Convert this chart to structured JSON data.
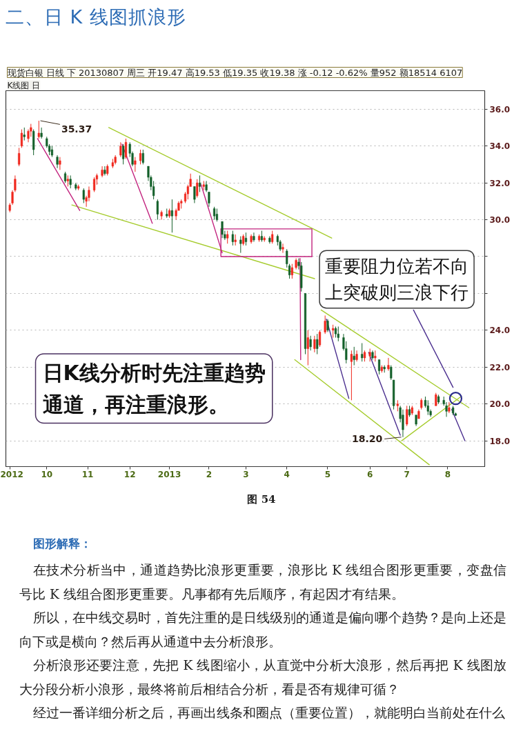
{
  "chart_data": {
    "type": "candlestick",
    "title": "二、日 K 线图抓浪形",
    "subtitle": "现货白银 日线 下 20130807 周三 开19.47 高19.53 低19.35 收19.38 涨 -0.12 -0.62% 量952 额18514 6107",
    "x": [
      "2012-09-03",
      "2012-09-05",
      "2012-09-07",
      "2012-09-10",
      "2012-09-12",
      "2012-09-14",
      "2012-09-17",
      "2012-09-19",
      "2012-09-21",
      "2012-09-25",
      "2012-09-27",
      "2012-10-01",
      "2012-10-03",
      "2012-10-05",
      "2012-10-09",
      "2012-10-11",
      "2012-10-15",
      "2012-10-17",
      "2012-10-19",
      "2012-10-23",
      "2012-10-25",
      "2012-10-29",
      "2012-10-31",
      "2012-11-02",
      "2012-11-06",
      "2012-11-08",
      "2012-11-12",
      "2012-11-14",
      "2012-11-16",
      "2012-11-20",
      "2012-11-22",
      "2012-11-26",
      "2012-11-28",
      "2012-11-30",
      "2012-12-03",
      "2012-12-05",
      "2012-12-07",
      "2012-12-11",
      "2012-12-13",
      "2012-12-17",
      "2012-12-19",
      "2012-12-21",
      "2012-12-24",
      "2012-12-27",
      "2012-12-31",
      "2013-01-02",
      "2013-01-04",
      "2013-01-07",
      "2013-01-09",
      "2013-01-11",
      "2013-01-14",
      "2013-01-16",
      "2013-01-18",
      "2013-01-21",
      "2013-01-23",
      "2013-01-25",
      "2013-01-28",
      "2013-01-30",
      "2013-02-01",
      "2013-02-05",
      "2013-02-07",
      "2013-02-11",
      "2013-02-13",
      "2013-02-15",
      "2013-02-19",
      "2013-02-21",
      "2013-02-25",
      "2013-02-27",
      "2013-03-01",
      "2013-03-05",
      "2013-03-07",
      "2013-03-11",
      "2013-03-13",
      "2013-03-15",
      "2013-03-19",
      "2013-03-21",
      "2013-03-25",
      "2013-03-27",
      "2013-03-29",
      "2013-04-01",
      "2013-04-03",
      "2013-04-05",
      "2013-04-08",
      "2013-04-10",
      "2013-04-12",
      "2013-04-15",
      "2013-04-17",
      "2013-04-19",
      "2013-04-22",
      "2013-04-24",
      "2013-04-26",
      "2013-04-30",
      "2013-05-02",
      "2013-05-06",
      "2013-05-08",
      "2013-05-10",
      "2013-05-14",
      "2013-05-16",
      "2013-05-20",
      "2013-05-22",
      "2013-05-24",
      "2013-05-28",
      "2013-05-30",
      "2013-06-03",
      "2013-06-05",
      "2013-06-07",
      "2013-06-10",
      "2013-06-12",
      "2013-06-14",
      "2013-06-17",
      "2013-06-19",
      "2013-06-21",
      "2013-06-24",
      "2013-06-26",
      "2013-06-28",
      "2013-07-01",
      "2013-07-03",
      "2013-07-05",
      "2013-07-08",
      "2013-07-10",
      "2013-07-12",
      "2013-07-15",
      "2013-07-17",
      "2013-07-19",
      "2013-07-23",
      "2013-07-25",
      "2013-07-29",
      "2013-07-31",
      "2013-08-02",
      "2013-08-05",
      "2013-08-07"
    ],
    "ohlc": [
      [
        30.5,
        30.9,
        30.4,
        30.8
      ],
      [
        30.9,
        31.6,
        30.8,
        31.5
      ],
      [
        31.6,
        32.4,
        31.5,
        32.2
      ],
      [
        33.0,
        33.9,
        32.9,
        33.6
      ],
      [
        34.0,
        34.9,
        33.9,
        34.7
      ],
      [
        34.6,
        35.0,
        34.3,
        34.5
      ],
      [
        34.4,
        34.9,
        34.2,
        34.8
      ],
      [
        34.8,
        35.2,
        34.5,
        35.0
      ],
      [
        34.8,
        34.9,
        33.5,
        33.8
      ],
      [
        34.5,
        35.37,
        34.4,
        34.7
      ],
      [
        34.7,
        35.0,
        34.4,
        34.5
      ],
      [
        34.4,
        34.5,
        33.9,
        34.0
      ],
      [
        34.0,
        34.1,
        33.5,
        33.7
      ],
      [
        33.8,
        34.0,
        33.4,
        33.5
      ],
      [
        33.4,
        33.5,
        32.8,
        33.0
      ],
      [
        33.0,
        33.4,
        32.7,
        33.2
      ],
      [
        32.5,
        32.6,
        32.0,
        32.1
      ],
      [
        32.1,
        32.4,
        31.8,
        32.2
      ],
      [
        32.2,
        32.4,
        31.7,
        31.9
      ],
      [
        31.9,
        32.0,
        31.6,
        31.7
      ],
      [
        31.7,
        31.9,
        31.6,
        31.8
      ],
      [
        31.6,
        31.7,
        30.9,
        31.1
      ],
      [
        31.0,
        31.3,
        30.7,
        31.2
      ],
      [
        31.2,
        31.8,
        31.0,
        31.6
      ],
      [
        31.6,
        32.3,
        31.5,
        32.2
      ],
      [
        32.2,
        32.5,
        31.9,
        32.4
      ],
      [
        32.4,
        32.9,
        32.3,
        32.7
      ],
      [
        32.7,
        32.9,
        32.4,
        32.5
      ],
      [
        32.5,
        33.0,
        32.4,
        32.9
      ],
      [
        32.9,
        33.3,
        32.8,
        33.1
      ],
      [
        33.1,
        33.5,
        33.0,
        33.4
      ],
      [
        33.5,
        34.2,
        33.4,
        34.0
      ],
      [
        34.0,
        34.1,
        33.0,
        33.3
      ],
      [
        33.4,
        34.4,
        33.3,
        34.2
      ],
      [
        34.1,
        34.2,
        33.4,
        33.6
      ],
      [
        33.6,
        33.7,
        32.9,
        33.0
      ],
      [
        33.0,
        33.4,
        32.6,
        33.2
      ],
      [
        33.2,
        33.8,
        33.0,
        33.6
      ],
      [
        33.6,
        33.8,
        33.0,
        33.1
      ],
      [
        32.9,
        32.9,
        32.1,
        32.3
      ],
      [
        32.3,
        32.4,
        31.6,
        31.8
      ],
      [
        31.8,
        32.1,
        31.1,
        31.3
      ],
      [
        31.0,
        31.1,
        30.0,
        30.3
      ],
      [
        30.2,
        30.5,
        30.0,
        30.4
      ],
      [
        30.3,
        30.6,
        30.1,
        30.2
      ],
      [
        30.2,
        30.6,
        30.1,
        30.5
      ],
      [
        30.5,
        31.1,
        29.3,
        30.2
      ],
      [
        30.2,
        30.6,
        30.0,
        30.5
      ],
      [
        30.5,
        31.0,
        30.5,
        30.9
      ],
      [
        30.9,
        31.1,
        30.6,
        31.0
      ],
      [
        31.0,
        31.5,
        30.9,
        31.4
      ],
      [
        31.4,
        31.9,
        31.1,
        31.8
      ],
      [
        31.8,
        32.5,
        31.8,
        32.2
      ],
      [
        31.8,
        31.8,
        30.9,
        31.1
      ],
      [
        31.3,
        32.2,
        31.2,
        32.0
      ],
      [
        32.0,
        32.4,
        31.5,
        31.8
      ],
      [
        31.8,
        32.1,
        31.6,
        31.9
      ],
      [
        31.9,
        32.1,
        31.5,
        31.6
      ],
      [
        31.5,
        31.5,
        30.7,
        30.9
      ],
      [
        30.6,
        30.7,
        30.0,
        30.2
      ],
      [
        30.3,
        30.6,
        29.9,
        30.0
      ],
      [
        29.9,
        29.9,
        29.0,
        29.2
      ],
      [
        29.2,
        29.4,
        28.9,
        29.0
      ],
      [
        29.0,
        29.4,
        28.7,
        29.2
      ],
      [
        29.2,
        29.4,
        28.6,
        28.8
      ],
      [
        28.8,
        29.2,
        28.6,
        28.9
      ],
      [
        28.9,
        29.1,
        28.2,
        28.7
      ],
      [
        28.7,
        29.2,
        28.6,
        29.1
      ],
      [
        29.0,
        29.3,
        28.6,
        28.8
      ],
      [
        28.8,
        29.2,
        28.7,
        29.1
      ],
      [
        29.1,
        29.3,
        28.8,
        28.9
      ],
      [
        28.9,
        29.2,
        28.8,
        29.1
      ],
      [
        29.1,
        29.4,
        28.8,
        28.9
      ],
      [
        28.9,
        29.1,
        28.8,
        29.0
      ],
      [
        29.0,
        29.1,
        28.7,
        28.8
      ],
      [
        28.8,
        29.4,
        28.7,
        29.2
      ],
      [
        29.1,
        29.2,
        28.6,
        28.8
      ],
      [
        28.8,
        28.9,
        28.3,
        28.4
      ],
      [
        28.4,
        28.7,
        28.2,
        28.5
      ],
      [
        28.3,
        28.4,
        27.4,
        27.6
      ],
      [
        27.5,
        27.6,
        26.8,
        27.0
      ],
      [
        27.0,
        27.6,
        26.8,
        27.4
      ],
      [
        27.4,
        27.9,
        27.3,
        27.8
      ],
      [
        27.7,
        27.9,
        27.3,
        27.5
      ],
      [
        27.5,
        27.7,
        26.1,
        26.3
      ],
      [
        26.0,
        26.0,
        22.7,
        23.0
      ],
      [
        23.0,
        24.0,
        22.1,
        23.6
      ],
      [
        23.5,
        23.7,
        22.9,
        23.1
      ],
      [
        23.0,
        23.7,
        22.8,
        23.5
      ],
      [
        23.5,
        23.8,
        22.7,
        23.0
      ],
      [
        23.2,
        24.0,
        23.1,
        23.9
      ],
      [
        23.9,
        24.8,
        23.8,
        24.5
      ],
      [
        24.5,
        24.6,
        23.9,
        24.0
      ],
      [
        24.0,
        24.3,
        23.6,
        24.1
      ],
      [
        24.1,
        24.2,
        23.6,
        23.8
      ],
      [
        23.8,
        24.2,
        23.4,
        23.6
      ],
      [
        23.6,
        23.8,
        22.9,
        23.0
      ],
      [
        23.0,
        23.4,
        22.2,
        22.4
      ],
      [
        22.3,
        22.9,
        20.2,
        22.7
      ],
      [
        22.6,
        23.1,
        22.1,
        22.4
      ],
      [
        22.4,
        22.9,
        22.3,
        22.7
      ],
      [
        22.7,
        23.3,
        22.3,
        22.5
      ],
      [
        22.5,
        22.9,
        22.3,
        22.8
      ],
      [
        22.6,
        23.0,
        22.3,
        22.8
      ],
      [
        22.8,
        22.9,
        22.4,
        22.5
      ],
      [
        22.5,
        22.9,
        22.3,
        22.6
      ],
      [
        22.4,
        22.4,
        21.6,
        21.8
      ],
      [
        21.8,
        22.1,
        21.7,
        22.0
      ],
      [
        22.0,
        22.1,
        21.7,
        21.9
      ],
      [
        21.9,
        22.5,
        21.8,
        22.1
      ],
      [
        22.0,
        22.1,
        21.3,
        21.4
      ],
      [
        21.3,
        21.3,
        19.7,
        19.9
      ],
      [
        19.9,
        20.2,
        19.6,
        20.0
      ],
      [
        19.8,
        19.9,
        19.0,
        19.2
      ],
      [
        19.4,
        19.7,
        18.2,
        18.6
      ],
      [
        18.9,
        19.9,
        18.8,
        19.7
      ],
      [
        19.7,
        19.9,
        19.3,
        19.4
      ],
      [
        19.5,
        19.9,
        19.4,
        19.8
      ],
      [
        19.4,
        19.4,
        18.8,
        18.9
      ],
      [
        19.2,
        19.7,
        19.2,
        19.6
      ],
      [
        19.8,
        20.3,
        19.7,
        20.2
      ],
      [
        20.2,
        20.4,
        19.8,
        19.9
      ],
      [
        19.9,
        20.2,
        19.4,
        19.6
      ],
      [
        19.6,
        19.7,
        19.3,
        19.4
      ],
      [
        19.9,
        20.6,
        19.9,
        20.5
      ],
      [
        20.4,
        20.5,
        20.0,
        20.1
      ],
      [
        20.2,
        20.4,
        19.9,
        20.0
      ],
      [
        19.9,
        20.1,
        19.3,
        19.6
      ],
      [
        19.6,
        20.1,
        19.5,
        19.8
      ],
      [
        19.8,
        19.9,
        19.4,
        19.5
      ],
      [
        19.47,
        19.53,
        19.35,
        19.38
      ]
    ],
    "series": [
      {
        "type": "line",
        "color": "#a6cc2e",
        "x": [
          "2012-11-17",
          "2013-05-05"
        ],
        "values": [
          35.0,
          29.0
        ]
      },
      {
        "type": "line",
        "color": "#a6cc2e",
        "x": [
          "2012-10-20",
          "2013-04-22"
        ],
        "values": [
          30.8,
          26.8
        ]
      },
      {
        "type": "line",
        "color": "#a6cc2e",
        "x": [
          "2013-04-27",
          "2013-08-17"
        ],
        "values": [
          25.1,
          19.8
        ]
      },
      {
        "type": "line",
        "color": "#a6cc2e",
        "x": [
          "2013-04-07",
          "2013-07-18"
        ],
        "values": [
          22.4,
          16.7
        ]
      },
      {
        "type": "line",
        "color": "#a6cc2e",
        "x": [
          "2013-06-27",
          "2013-08-11"
        ],
        "values": [
          18.0,
          20.4
        ]
      },
      {
        "type": "line",
        "color": "#c2237e",
        "x": [
          "2012-09-24",
          "2012-10-26"
        ],
        "values": [
          34.4,
          30.5
        ]
      },
      {
        "type": "line",
        "color": "#c2237e",
        "x": [
          "2012-11-27",
          "2012-12-20"
        ],
        "values": [
          34.1,
          29.8
        ]
      },
      {
        "type": "line",
        "color": "#c2237e",
        "x": [
          "2013-01-26",
          "2013-02-11"
        ],
        "values": [
          31.9,
          28.2
        ]
      },
      {
        "type": "line",
        "color": "#c2237e",
        "x": [
          "2013-04-11",
          "2013-04-11T12:00"
        ],
        "values": [
          27.9,
          22.4
        ]
      },
      {
        "type": "line",
        "color": "#c2237e",
        "x": [
          "2013-02-10",
          "2013-04-20",
          "2013-04-20"
        ],
        "values": [
          29.5,
          29.5,
          28.0
        ]
      },
      {
        "type": "line",
        "color": "#c2237e",
        "x": [
          "2013-02-10",
          "2013-02-10",
          "2013-04-20"
        ],
        "values": [
          29.5,
          28.0,
          28.0
        ]
      },
      {
        "type": "line",
        "color": "#4b2f8f",
        "x": [
          "2013-05-01",
          "2013-05-18"
        ],
        "values": [
          24.6,
          20.3
        ]
      },
      {
        "type": "line",
        "color": "#4b2f8f",
        "x": [
          "2013-06-02",
          "2013-06-26"
        ],
        "values": [
          22.8,
          18.3
        ]
      },
      {
        "type": "line",
        "color": "#4b2f8f",
        "x": [
          "2013-07-06",
          "2013-08-05"
        ],
        "values": [
          25.1,
          20.9
        ]
      },
      {
        "type": "line",
        "color": "#4b2f8f",
        "x": [
          "2013-08-04",
          "2013-08-14"
        ],
        "values": [
          19.7,
          18.0
        ]
      },
      {
        "type": "scatter",
        "color": "#2c2c8c",
        "x": [
          "2013-08-07"
        ],
        "values": [
          20.3
        ],
        "marker": "circle"
      }
    ],
    "xlim": [
      "2012-08-31",
      "2013-08-29"
    ],
    "xticks": [
      {
        "value": "2012-09-03",
        "label": "2012"
      },
      {
        "value": "2012-10-01",
        "label": "10"
      },
      {
        "value": "2012-11-01",
        "label": "11"
      },
      {
        "value": "2012-12-03",
        "label": "12"
      },
      {
        "value": "2013-01-02",
        "label": "2013"
      },
      {
        "value": "2013-02-01",
        "label": "2"
      },
      {
        "value": "2013-03-01",
        "label": "3"
      },
      {
        "value": "2013-04-01",
        "label": "4"
      },
      {
        "value": "2013-05-02",
        "label": "5"
      },
      {
        "value": "2013-06-03",
        "label": "6"
      },
      {
        "value": "2013-07-01",
        "label": "7"
      },
      {
        "value": "2013-08-01",
        "label": "8"
      }
    ],
    "ylim": [
      16.6,
      37.0
    ],
    "yticks": [
      {
        "value": 18,
        "label": "18.0"
      },
      {
        "value": 20,
        "label": "20.0"
      },
      {
        "value": 22,
        "label": "22.0"
      },
      {
        "value": 24,
        "label": "24.0"
      },
      {
        "value": 26,
        "label": null
      },
      {
        "value": 28,
        "label": null
      },
      {
        "value": 30,
        "label": "30.0"
      },
      {
        "value": 32,
        "label": "32.0"
      },
      {
        "value": 34,
        "label": "34.0"
      },
      {
        "value": 36,
        "label": "36.0"
      }
    ],
    "grid": "y",
    "annotations": [
      "K线图 日",
      {
        "text": "35.37",
        "x": "2012-09-25",
        "y": 35.37
      },
      "重要阻力位若不向上突破则三浪下行",
      "日K线分析时先注重趋势通道，再注重浪形。",
      {
        "text": "18.20",
        "x": "2013-06-28",
        "y": 18.2
      },
      "图 54",
      "图形解释：",
      "在技术分析当中，通道趋势比浪形更重要，浪形比 K 线组合图形更重要，变盘信号比 K 线组合图形更重要。凡事都有先后顺序，有起因才有结果。",
      "所以，在中线交易时，首先注重的是日线级别的通道是偏向哪个趋势？是向上还是向下或是横向？然后再从通道中去分析浪形。",
      "分析浪形还要注意，先把 K 线图缩小，从直觉中分析大浪形，然后再把 K 线图放大分段分析小浪形，最终将前后相结合分析，看是否有规律可循？",
      "经过一番详细分析之后，再画出线条和圈点（重要位置），就能明白当前处在什么"
    ]
  }
}
